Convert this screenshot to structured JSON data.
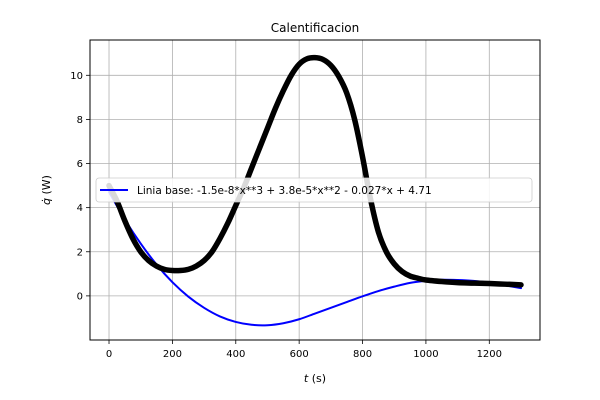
{
  "chart_data": {
    "type": "line",
    "title": "Calentificacion",
    "xlabel": "t (s)",
    "ylabel": "q̇ (W)",
    "xlim": [
      -60,
      1360
    ],
    "ylim": [
      -2.0,
      11.6
    ],
    "xticks": [
      0,
      200,
      400,
      600,
      800,
      1000,
      1200
    ],
    "yticks": [
      0,
      2,
      4,
      6,
      8,
      10
    ],
    "grid": true,
    "legend_location": "center-left",
    "series": [
      {
        "name": "Linia base: -1.5e-8*x**3 + 3.8e-5*x**2 - 0.027*x + 4.71",
        "color": "#0000ff",
        "style": "smooth",
        "x": [
          0,
          50,
          100,
          150,
          200,
          250,
          300,
          350,
          400,
          450,
          500,
          550,
          600,
          650,
          700,
          750,
          800,
          850,
          900,
          950,
          1000,
          1050,
          1100,
          1150,
          1200,
          1250,
          1300
        ],
        "y": [
          4.71,
          3.46,
          2.37,
          1.42,
          0.62,
          -0.03,
          -0.54,
          -0.93,
          -1.18,
          -1.31,
          -1.33,
          -1.24,
          -1.06,
          -0.8,
          -0.54,
          -0.28,
          -0.02,
          0.22,
          0.42,
          0.59,
          0.68,
          0.73,
          0.72,
          0.68,
          0.6,
          0.48,
          0.35
        ]
      },
      {
        "name": "",
        "color": "#000000",
        "style": "thick",
        "x": [
          0,
          25,
          50,
          75,
          100,
          125,
          150,
          175,
          200,
          225,
          250,
          275,
          300,
          325,
          350,
          375,
          400,
          425,
          450,
          475,
          500,
          525,
          550,
          575,
          600,
          625,
          650,
          675,
          700,
          725,
          750,
          775,
          800,
          825,
          850,
          875,
          900,
          925,
          950,
          975,
          1000,
          1050,
          1100,
          1150,
          1200,
          1250,
          1300
        ],
        "y": [
          5.0,
          4.3,
          3.4,
          2.6,
          2.0,
          1.6,
          1.35,
          1.2,
          1.15,
          1.15,
          1.2,
          1.35,
          1.6,
          2.0,
          2.6,
          3.3,
          4.1,
          4.9,
          5.8,
          6.7,
          7.6,
          8.5,
          9.3,
          10.0,
          10.5,
          10.75,
          10.8,
          10.72,
          10.45,
          9.95,
          9.2,
          8.0,
          6.3,
          4.4,
          2.9,
          2.0,
          1.45,
          1.1,
          0.9,
          0.8,
          0.72,
          0.65,
          0.6,
          0.58,
          0.56,
          0.53,
          0.5
        ]
      }
    ]
  }
}
